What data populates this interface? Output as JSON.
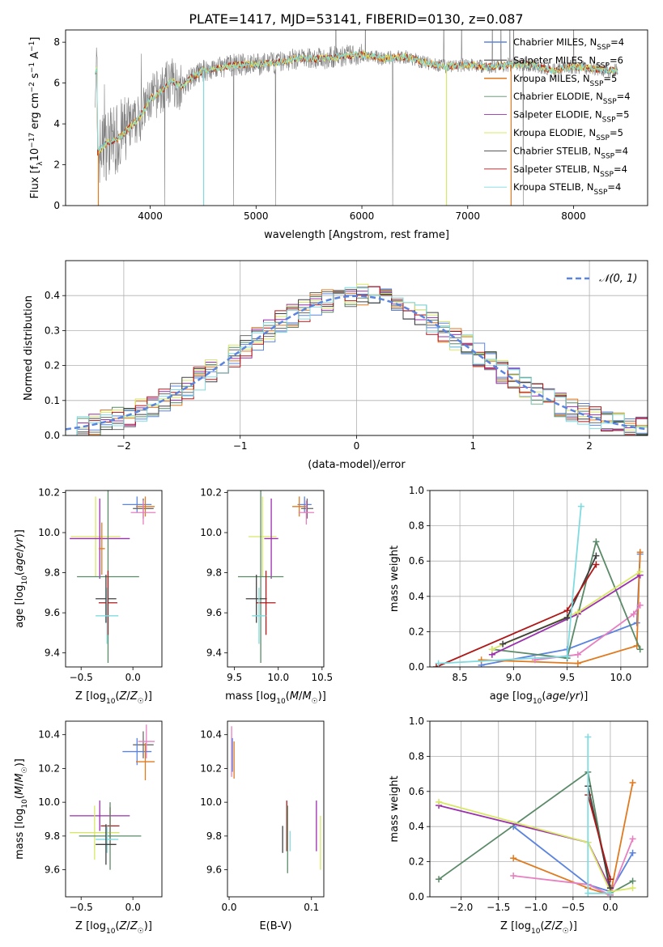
{
  "title": "PLATE=1417, MJD=53141, FIBERID=0130, z=0.087",
  "colors": {
    "Chabrier MILES": "#5b84e0",
    "Salpeter MILES": "#6b6b6b",
    "Kroupa MILES": "#e07a1f",
    "Chabrier ELODIE": "#5a8a68",
    "Salpeter ELODIE": "#9b2fae",
    "Kroupa ELODIE": "#d8e866",
    "Chabrier STELIB": "#404040",
    "Salpeter STELIB": "#b01818",
    "Kroupa STELIB": "#7fdbe0",
    "pink": "#e77fc0",
    "spectrum_grey": "#808080",
    "normal_curve": "#5b84e0"
  },
  "legend_labels": {
    "Chabrier MILES": "Chabrier MILES, N",
    "Salpeter MILES": "Salpeter MILES, N",
    "Kroupa MILES": "Kroupa MILES, N",
    "Chabrier ELODIE": "Chabrier ELODIE, N",
    "Salpeter ELODIE": "Salpeter ELODIE, N",
    "Kroupa ELODIE": "Kroupa ELODIE, N",
    "Chabrier STELIB": "Chabrier STELIB, N",
    "Salpeter STELIB": "Salpeter STELIB, N",
    "Kroupa STELIB": "Kroupa STELIB, N",
    "sub": "SSP",
    "counts": {
      "Chabrier MILES": "=4",
      "Salpeter MILES": "=6",
      "Kroupa MILES": "=5",
      "Chabrier ELODIE": "=4",
      "Salpeter ELODIE": "=5",
      "Kroupa ELODIE": "=5",
      "Chabrier STELIB": "=4",
      "Salpeter STELIB": "=4",
      "Kroupa STELIB": "=4"
    }
  },
  "chart_data": [
    {
      "type": "line",
      "panel": "spectrum",
      "xlabel": "wavelength [Angstrom, rest frame]",
      "ylabel": "Flux [fλ10−17 erg cm−2 s−1 A−1]",
      "xlim": [
        3200,
        8700
      ],
      "ylim": [
        0,
        8.6
      ],
      "xticks": [
        4000,
        5000,
        6000,
        7000,
        8000
      ],
      "yticks": [
        0,
        2,
        4,
        6,
        8
      ],
      "continuum": [
        [
          3500,
          2.6
        ],
        [
          3600,
          3.1
        ],
        [
          3700,
          3.3
        ],
        [
          3800,
          3.8
        ],
        [
          3900,
          4.3
        ],
        [
          4000,
          5.2
        ],
        [
          4100,
          5.6
        ],
        [
          4200,
          6.1
        ],
        [
          4300,
          5.8
        ],
        [
          4400,
          6.3
        ],
        [
          4500,
          6.6
        ],
        [
          4600,
          6.7
        ],
        [
          4800,
          6.9
        ],
        [
          5000,
          6.9
        ],
        [
          5200,
          7.0
        ],
        [
          5400,
          7.2
        ],
        [
          5600,
          7.2
        ],
        [
          5800,
          7.3
        ],
        [
          6000,
          7.4
        ],
        [
          6200,
          7.2
        ],
        [
          6400,
          7.3
        ],
        [
          6600,
          7.0
        ],
        [
          6800,
          6.8
        ],
        [
          7000,
          6.9
        ],
        [
          7200,
          6.8
        ],
        [
          7400,
          6.9
        ],
        [
          7600,
          6.9
        ],
        [
          7800,
          6.6
        ],
        [
          8000,
          6.8
        ],
        [
          8200,
          6.7
        ],
        [
          8400,
          6.6
        ]
      ],
      "legend_position": "right"
    },
    {
      "type": "line",
      "panel": "residual distribution",
      "xlabel": "(data-model)/error",
      "ylabel": "Normed distribution",
      "xlim": [
        -2.5,
        2.5
      ],
      "ylim": [
        0,
        0.5
      ],
      "xticks": [
        -2,
        -1,
        0,
        1,
        2
      ],
      "yticks": [
        0.0,
        0.1,
        0.2,
        0.3,
        0.4
      ],
      "grid": true,
      "legend": "𝒩(0, 1)",
      "legend_position": "top-right",
      "normal_curve": {
        "mean": 0,
        "sigma": 1
      }
    },
    {
      "type": "scatter",
      "panel": "Z vs age",
      "xlabel": "Z [log10(Z/Z☉)]",
      "ylabel": "age  [log10(age/yr)]",
      "xlim": [
        -0.65,
        0.28
      ],
      "ylim": [
        9.33,
        10.21
      ],
      "xticks": [
        -0.5,
        0.0
      ],
      "yticks": [
        9.4,
        9.6,
        9.8,
        10.0,
        10.2
      ],
      "series": [
        {
          "name": "Chabrier MILES",
          "x": 0.04,
          "y": 10.14,
          "xerr": 0.14,
          "yerr": 0.04
        },
        {
          "name": "Salpeter MILES",
          "x": 0.1,
          "y": 10.12,
          "xerr": 0.1,
          "yerr": 0.05
        },
        {
          "name": "Kroupa MILES",
          "x": 0.12,
          "y": 10.13,
          "xerr": 0.09,
          "yerr": 0.05
        },
        {
          "name": "pink",
          "x": 0.1,
          "y": 10.1,
          "xerr": 0.12,
          "yerr": 0.06
        },
        {
          "name": "Kroupa ELODIE",
          "x": -0.36,
          "y": 9.98,
          "xerr": 0.24,
          "yerr": 0.2
        },
        {
          "name": "Salpeter ELODIE",
          "x": -0.32,
          "y": 9.97,
          "xerr": 0.29,
          "yerr": 0.2
        },
        {
          "name": "Kroupa MILES",
          "x": -0.3,
          "y": 9.92,
          "xerr": 0.03,
          "yerr": 0.13
        },
        {
          "name": "Chabrier ELODIE",
          "x": -0.24,
          "y": 9.78,
          "xerr": 0.3,
          "yerr": 0.43
        },
        {
          "name": "Chabrier STELIB",
          "x": -0.26,
          "y": 9.67,
          "xerr": 0.1,
          "yerr": 0.12
        },
        {
          "name": "Salpeter STELIB",
          "x": -0.24,
          "y": 9.65,
          "xerr": 0.09,
          "yerr": 0.16
        },
        {
          "name": "Kroupa STELIB",
          "x": -0.25,
          "y": 9.585,
          "xerr": 0.11,
          "yerr": 0.14
        }
      ]
    },
    {
      "type": "scatter",
      "panel": "mass vs age",
      "xlabel": "mass [log10(M/M☉)]",
      "xlim": [
        9.42,
        10.52
      ],
      "ylim": [
        9.33,
        10.21
      ],
      "xticks": [
        9.5,
        10.0,
        10.5
      ],
      "yticks": [
        9.4,
        9.6,
        9.8,
        10.0,
        10.2
      ],
      "series": [
        {
          "name": "Chabrier MILES",
          "x": 10.3,
          "y": 10.14,
          "xerr": 0.08,
          "yerr": 0.04
        },
        {
          "name": "Salpeter MILES",
          "x": 10.33,
          "y": 10.12,
          "xerr": 0.07,
          "yerr": 0.05
        },
        {
          "name": "Kroupa MILES",
          "x": 10.24,
          "y": 10.13,
          "xerr": 0.08,
          "yerr": 0.05
        },
        {
          "name": "pink",
          "x": 10.32,
          "y": 10.1,
          "xerr": 0.09,
          "yerr": 0.06
        },
        {
          "name": "Kroupa ELODIE",
          "x": 9.82,
          "y": 9.98,
          "xerr": 0.16,
          "yerr": 0.2
        },
        {
          "name": "Salpeter ELODIE",
          "x": 9.92,
          "y": 9.97,
          "xerr": 0.08,
          "yerr": 0.2
        },
        {
          "name": "Chabrier ELODIE",
          "x": 9.8,
          "y": 9.78,
          "xerr": 0.26,
          "yerr": 0.43
        },
        {
          "name": "Chabrier STELIB",
          "x": 9.75,
          "y": 9.67,
          "xerr": 0.12,
          "yerr": 0.12
        },
        {
          "name": "Salpeter STELIB",
          "x": 9.86,
          "y": 9.65,
          "xerr": 0.11,
          "yerr": 0.16
        },
        {
          "name": "Kroupa STELIB",
          "x": 9.78,
          "y": 9.585,
          "xerr": 0.08,
          "yerr": 0.14
        }
      ]
    },
    {
      "type": "line",
      "panel": "mass weight vs age",
      "xlabel": "age  [log10(age/yr)]",
      "ylabel": "mass weight",
      "xlim": [
        8.22,
        10.25
      ],
      "ylim": [
        0,
        1.0
      ],
      "xticks": [
        8.5,
        9.0,
        9.5,
        10.0
      ],
      "yticks": [
        0.0,
        0.2,
        0.4,
        0.6,
        0.8,
        1.0
      ],
      "grid": true,
      "series": [
        {
          "name": "Chabrier MILES",
          "x": [
            8.7,
            9.5,
            10.15,
            10.18
          ],
          "y": [
            0.01,
            0.1,
            0.25,
            0.64
          ]
        },
        {
          "name": "Kroupa MILES",
          "x": [
            8.7,
            9.6,
            10.15,
            10.18
          ],
          "y": [
            0.04,
            0.02,
            0.12,
            0.65
          ]
        },
        {
          "name": "pink",
          "x": [
            9.2,
            9.6,
            10.12,
            10.18
          ],
          "y": [
            0.04,
            0.07,
            0.3,
            0.35
          ]
        },
        {
          "name": "Chabrier ELODIE",
          "x": [
            8.8,
            9.5,
            9.77,
            10.18
          ],
          "y": [
            0.1,
            0.05,
            0.71,
            0.1
          ]
        },
        {
          "name": "Salpeter ELODIE",
          "x": [
            8.8,
            9.6,
            10.18
          ],
          "y": [
            0.07,
            0.3,
            0.52
          ]
        },
        {
          "name": "Kroupa ELODIE",
          "x": [
            8.8,
            9.6,
            10.18
          ],
          "y": [
            0.1,
            0.31,
            0.54
          ]
        },
        {
          "name": "Chabrier STELIB",
          "x": [
            8.9,
            9.5,
            9.77
          ],
          "y": [
            0.13,
            0.28,
            0.63
          ]
        },
        {
          "name": "Salpeter STELIB",
          "x": [
            8.28,
            9.5,
            9.77
          ],
          "y": [
            0.0,
            0.32,
            0.58
          ]
        },
        {
          "name": "Kroupa STELIB",
          "x": [
            8.3,
            9.5,
            9.63
          ],
          "y": [
            0.02,
            0.06,
            0.91
          ]
        }
      ]
    },
    {
      "type": "scatter",
      "panel": "Z vs mass",
      "xlabel": "Z [log10(Z/Z☉)]",
      "ylabel": "mass [log10(M/M☉)]",
      "xlim": [
        -0.65,
        0.28
      ],
      "ylim": [
        9.44,
        10.48
      ],
      "xticks": [
        -0.5,
        0.0
      ],
      "yticks": [
        9.6,
        9.8,
        10.0,
        10.2,
        10.4
      ],
      "series": [
        {
          "name": "Salpeter MILES",
          "x": 0.1,
          "y": 10.34,
          "xerr": 0.1,
          "yerr": 0.08
        },
        {
          "name": "pink",
          "x": 0.13,
          "y": 10.36,
          "xerr": 0.08,
          "yerr": 0.1
        },
        {
          "name": "Chabrier MILES",
          "x": 0.04,
          "y": 10.3,
          "xerr": 0.14,
          "yerr": 0.08
        },
        {
          "name": "Kroupa MILES",
          "x": 0.12,
          "y": 10.24,
          "xerr": 0.09,
          "yerr": 0.11
        },
        {
          "name": "Salpeter ELODIE",
          "x": -0.32,
          "y": 9.92,
          "xerr": 0.29,
          "yerr": 0.09
        },
        {
          "name": "Salpeter STELIB",
          "x": -0.22,
          "y": 9.86,
          "xerr": 0.09,
          "yerr": 0.11
        },
        {
          "name": "Kroupa ELODIE",
          "x": -0.37,
          "y": 9.82,
          "xerr": 0.24,
          "yerr": 0.16
        },
        {
          "name": "Chabrier ELODIE",
          "x": -0.22,
          "y": 9.8,
          "xerr": 0.3,
          "yerr": 0.2
        },
        {
          "name": "Kroupa STELIB",
          "x": -0.25,
          "y": 9.78,
          "xerr": 0.11,
          "yerr": 0.08
        },
        {
          "name": "Chabrier STELIB",
          "x": -0.26,
          "y": 9.75,
          "xerr": 0.1,
          "yerr": 0.12
        }
      ]
    },
    {
      "type": "scatter",
      "panel": "E(B-V)",
      "xlabel": "E(B-V)",
      "xlim": [
        -0.002,
        0.115
      ],
      "ylim": [
        9.44,
        10.48
      ],
      "xticks": [
        0.0,
        0.1
      ],
      "yticks": [
        9.6,
        9.8,
        10.0,
        10.2,
        10.4
      ],
      "series": [
        {
          "name": "pink",
          "x": 0.003,
          "y": 10.3,
          "yerr": 0.15
        },
        {
          "name": "Kroupa MILES",
          "x": 0.006,
          "y": 10.25,
          "yerr": 0.11
        },
        {
          "name": "Chabrier MILES",
          "x": 0.004,
          "y": 10.28,
          "yerr": 0.1
        },
        {
          "name": "Chabrier STELIB",
          "x": 0.065,
          "y": 9.78,
          "yerr": 0.08
        },
        {
          "name": "Salpeter STELIB",
          "x": 0.07,
          "y": 9.86,
          "yerr": 0.15
        },
        {
          "name": "Chabrier ELODIE",
          "x": 0.071,
          "y": 9.78,
          "yerr": 0.2
        },
        {
          "name": "Kroupa STELIB",
          "x": 0.074,
          "y": 9.77,
          "yerr": 0.06
        },
        {
          "name": "Salpeter ELODIE",
          "x": 0.106,
          "y": 9.86,
          "yerr": 0.15
        },
        {
          "name": "Kroupa ELODIE",
          "x": 0.111,
          "y": 9.76,
          "yerr": 0.16
        }
      ]
    },
    {
      "type": "line",
      "panel": "mass weight vs Z",
      "xlabel": "Z [log10(Z/Z☉)]",
      "ylabel": "mass weight",
      "xlim": [
        -2.42,
        0.5
      ],
      "ylim": [
        0,
        1.0
      ],
      "xticks": [
        -2.0,
        -1.5,
        -1.0,
        -0.5,
        0.0
      ],
      "yticks": [
        0.0,
        0.2,
        0.4,
        0.6,
        0.8,
        1.0
      ],
      "grid": true,
      "series": [
        {
          "name": "Chabrier MILES",
          "x": [
            -1.3,
            -0.3,
            0.0,
            0.3
          ],
          "y": [
            0.4,
            0.07,
            0.03,
            0.25
          ]
        },
        {
          "name": "Kroupa MILES",
          "x": [
            -1.3,
            -0.3,
            0.0,
            0.3
          ],
          "y": [
            0.22,
            0.05,
            0.01,
            0.65
          ]
        },
        {
          "name": "pink",
          "x": [
            -1.3,
            -0.3,
            0.0,
            0.3
          ],
          "y": [
            0.12,
            0.07,
            0.01,
            0.33
          ]
        },
        {
          "name": "Chabrier ELODIE",
          "x": [
            -2.3,
            -0.3,
            0.0,
            0.3
          ],
          "y": [
            0.1,
            0.71,
            0.02,
            0.09
          ]
        },
        {
          "name": "Salpeter ELODIE",
          "x": [
            -2.3,
            -0.3,
            0.0
          ],
          "y": [
            0.52,
            0.31,
            0.05
          ]
        },
        {
          "name": "Kroupa ELODIE",
          "x": [
            -2.3,
            -0.3,
            0.0,
            0.3
          ],
          "y": [
            0.54,
            0.31,
            0.03,
            0.05
          ]
        },
        {
          "name": "Chabrier STELIB",
          "x": [
            -0.3,
            0.0
          ],
          "y": [
            0.63,
            0.05
          ]
        },
        {
          "name": "Salpeter STELIB",
          "x": [
            -0.3,
            0.0
          ],
          "y": [
            0.58,
            0.1
          ]
        },
        {
          "name": "Kroupa STELIB",
          "x": [
            -0.3,
            -0.3,
            0.0
          ],
          "y": [
            0.91,
            0.02,
            0.02
          ]
        }
      ]
    }
  ]
}
